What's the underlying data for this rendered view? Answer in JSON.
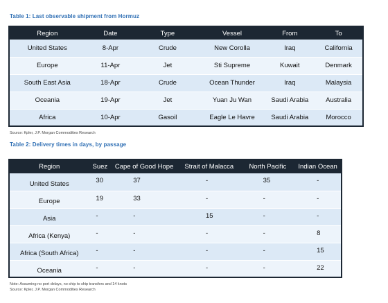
{
  "table1": {
    "caption": "Table 1: Last observable shipment from Hormuz",
    "headers": [
      "Region",
      "Date",
      "Type",
      "Vessel",
      "From",
      "To"
    ],
    "rows": [
      [
        "United States",
        "8-Apr",
        "Crude",
        "New Corolla",
        "Iraq",
        "California"
      ],
      [
        "Europe",
        "11-Apr",
        "Jet",
        "Sti Supreme",
        "Kuwait",
        "Denmark"
      ],
      [
        "South East Asia",
        "18-Apr",
        "Crude",
        "Ocean Thunder",
        "Iraq",
        "Malaysia"
      ],
      [
        "Oceania",
        "19-Apr",
        "Jet",
        "Yuan Ju Wan",
        "Saudi Arabia",
        "Australia"
      ],
      [
        "Africa",
        "10-Apr",
        "Gasoil",
        "Eagle Le Havre",
        "Saudi Arabia",
        "Morocco"
      ]
    ],
    "source": "Source: Kpler, J.P. Morgan Commodities Research"
  },
  "table2": {
    "caption": "Table 2: Delivery times in days, by passage",
    "headers": [
      "Region",
      "Suez",
      "Cape of Good Hope",
      "Strait of Malacca",
      "North Pacific",
      "Indian Ocean"
    ],
    "rows": [
      [
        "United States",
        "30",
        "37",
        "-",
        "35",
        "-"
      ],
      [
        "Europe",
        "19",
        "33",
        "-",
        "-",
        "-"
      ],
      [
        "Asia",
        "-",
        "-",
        "15",
        "-",
        "-"
      ],
      [
        "Africa (Kenya)",
        "-",
        "-",
        "-",
        "-",
        "8"
      ],
      [
        "Africa (South Africa)",
        "-",
        "-",
        "-",
        "-",
        "15"
      ],
      [
        "Oceania",
        "-",
        "-",
        "-",
        "-",
        "22"
      ]
    ],
    "note": "Note: Assuming no port delays, no ship to ship transfers and 14 knots",
    "source": "Source: Kpler, J.P. Morgan Commodities Research"
  },
  "colors": {
    "header_bg": "#1c2733",
    "caption": "#2f6fb4",
    "row_light": "#edf4fb",
    "row_dark": "#dce9f6"
  }
}
